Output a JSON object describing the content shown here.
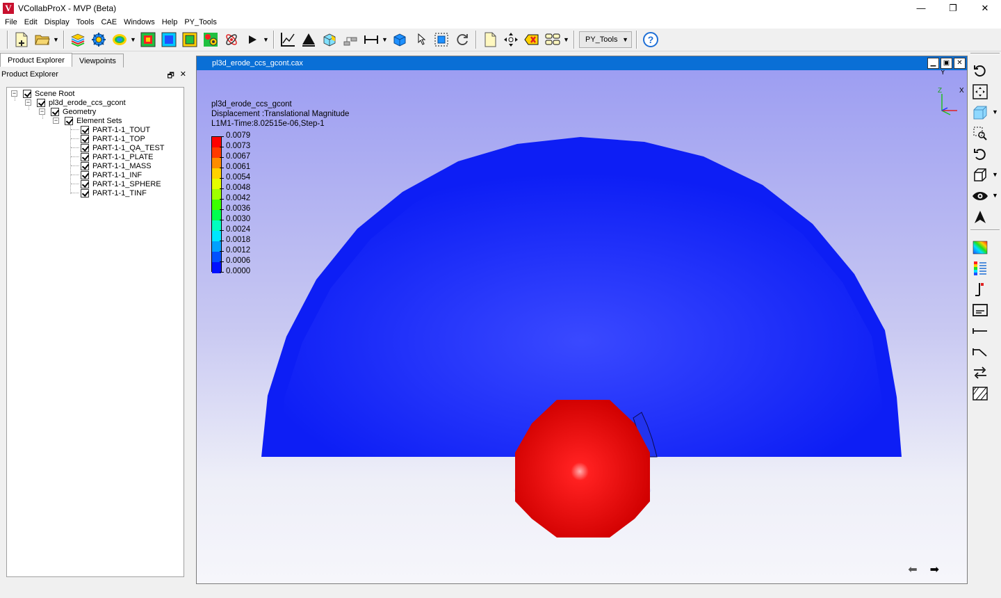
{
  "window": {
    "title": "VCollabProX - MVP (Beta)",
    "logo_letter": "V",
    "controls": [
      "—",
      "❐",
      "✕"
    ]
  },
  "menu": [
    "File",
    "Edit",
    "Display",
    "Tools",
    "CAE",
    "Windows",
    "Help",
    "PY_Tools"
  ],
  "toolbar": {
    "combo_value": "PY_Tools"
  },
  "left_panel": {
    "tabs": [
      "Product Explorer",
      "Viewpoints"
    ],
    "header": "Product Explorer",
    "tree": {
      "root": "Scene Root",
      "model": "pl3d_erode_ccs_gcont",
      "geometry": "Geometry",
      "element_sets": "Element Sets",
      "parts": [
        "PART-1-1_TOUT",
        "PART-1-1_TOP",
        "PART-1-1_QA_TEST",
        "PART-1-1_PLATE",
        "PART-1-1_MASS",
        "PART-1-1_INF",
        "PART-1-1_SPHERE",
        "PART-1-1_TINF"
      ]
    }
  },
  "viewport": {
    "title": "pl3d_erode_ccs_gcont.cax",
    "info_lines": [
      "pl3d_erode_ccs_gcont",
      "Displacement :Translational Magnitude",
      "L1M1-Time:8.02515e-06,Step-1"
    ],
    "legend": {
      "labels": [
        "0.0079",
        "0.0073",
        "0.0067",
        "0.0061",
        "0.0054",
        "0.0048",
        "0.0042",
        "0.0036",
        "0.0030",
        "0.0024",
        "0.0018",
        "0.0012",
        "0.0006",
        "0.0000"
      ],
      "colors": [
        "#ff0000",
        "#ff3a00",
        "#ff8c00",
        "#ffd200",
        "#e6ff00",
        "#a0ff00",
        "#3cff00",
        "#00ff50",
        "#00ffc0",
        "#00e6ff",
        "#00a0ff",
        "#0050ff",
        "#0010ff"
      ]
    },
    "triad": {
      "y": "Y",
      "z": "Z",
      "x": "X"
    }
  }
}
